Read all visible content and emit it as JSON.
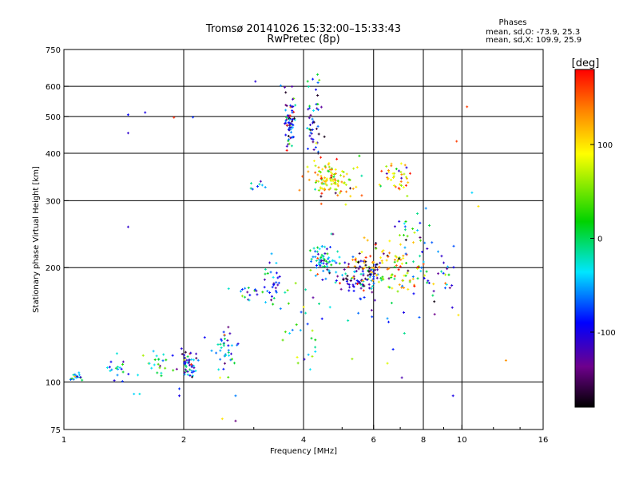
{
  "chart_data": {
    "type": "scatter",
    "title": "Tromsø 20141026 15:32:00–15:33:43",
    "subtitle": "RwPretec (8p)",
    "xlabel": "Frequency [MHz]",
    "ylabel": "Stationary phase Virtual Height [km]",
    "x_scale": "log",
    "y_scale": "log",
    "xlim": [
      1,
      16
    ],
    "ylim": [
      75,
      750
    ],
    "x_ticks": [
      1,
      2,
      4,
      6,
      8,
      10,
      16
    ],
    "x_tick_labels": [
      "1",
      "2",
      "4",
      "6",
      "8",
      "10",
      "16"
    ],
    "x_grid": [
      2,
      4,
      6,
      8,
      10
    ],
    "y_ticks": [
      75,
      100,
      200,
      300,
      400,
      500,
      600,
      750
    ],
    "y_tick_labels": [
      "75",
      "100",
      "200",
      "300",
      "400",
      "500",
      "600",
      "750"
    ],
    "y_grid": [
      100,
      200,
      300,
      400,
      500,
      600
    ],
    "grid": true,
    "stats": {
      "heading": "Phases",
      "o_line": "mean, sd,O: -73.9, 25.3",
      "x_line": "mean, sd,X: 109.9, 25.9"
    },
    "colorbar": {
      "label": "[deg]",
      "range": [
        -180,
        180
      ],
      "ticks": [
        -100,
        0,
        100
      ],
      "tick_labels": [
        "-100",
        "0",
        "100"
      ]
    },
    "seed": 20141026,
    "clusters": [
      {
        "fc": 1.08,
        "hc": 103,
        "sf": 0.03,
        "sh": 0.012,
        "n": 18,
        "phase": -20
      },
      {
        "fc": 1.38,
        "hc": 110,
        "sf": 0.05,
        "sh": 0.04,
        "n": 18,
        "phase": -30
      },
      {
        "fc": 1.72,
        "hc": 113,
        "sf": 0.05,
        "sh": 0.05,
        "n": 22,
        "phase": -40
      },
      {
        "fc": 2.05,
        "hc": 112,
        "sf": 0.03,
        "sh": 0.05,
        "n": 50,
        "phase": -60
      },
      {
        "fc": 2.55,
        "hc": 122,
        "sf": 0.05,
        "sh": 0.07,
        "n": 40,
        "phase": -55
      },
      {
        "fc": 2.95,
        "hc": 175,
        "sf": 0.05,
        "sh": 0.03,
        "n": 15,
        "phase": -60
      },
      {
        "fc": 3.35,
        "hc": 180,
        "sf": 0.03,
        "sh": 0.08,
        "n": 32,
        "phase": -70
      },
      {
        "fc": 3.1,
        "hc": 330,
        "sf": 0.02,
        "sh": 0.015,
        "n": 8,
        "phase": -40
      },
      {
        "fc": 3.7,
        "hc": 480,
        "sf": 0.015,
        "sh": 0.1,
        "n": 70,
        "phase": -90
      },
      {
        "fc": 4.25,
        "hc": 500,
        "sf": 0.03,
        "sh": 0.12,
        "n": 45,
        "phase": -85
      },
      {
        "fc": 4.6,
        "hc": 340,
        "sf": 0.08,
        "sh": 0.05,
        "n": 110,
        "phase": 110
      },
      {
        "fc": 6.8,
        "hc": 350,
        "sf": 0.06,
        "sh": 0.05,
        "n": 40,
        "phase": 115
      },
      {
        "fc": 4.5,
        "hc": 210,
        "sf": 0.04,
        "sh": 0.06,
        "n": 70,
        "phase": -50
      },
      {
        "fc": 5.5,
        "hc": 185,
        "sf": 0.07,
        "sh": 0.05,
        "n": 80,
        "phase": -100
      },
      {
        "fc": 5.8,
        "hc": 205,
        "sf": 0.06,
        "sh": 0.06,
        "n": 60,
        "phase": 140
      },
      {
        "fc": 7.0,
        "hc": 200,
        "sf": 0.07,
        "sh": 0.08,
        "n": 70,
        "phase": 100
      },
      {
        "fc": 8.5,
        "hc": 195,
        "sf": 0.07,
        "sh": 0.08,
        "n": 35,
        "phase": -90
      },
      {
        "fc": 7.5,
        "hc": 250,
        "sf": 0.05,
        "sh": 0.05,
        "n": 20,
        "phase": -40
      },
      {
        "fc": 3.9,
        "hc": 140,
        "sf": 0.08,
        "sh": 0.18,
        "n": 30,
        "phase": 0
      },
      {
        "fc": 6.5,
        "hc": 160,
        "sf": 0.15,
        "sh": 0.15,
        "n": 20,
        "phase": -80
      },
      {
        "fc": 2.0,
        "hc": 600,
        "sf": 0.3,
        "sh": 0.2,
        "n": 4,
        "phase": -100
      }
    ],
    "phase_noise": 55,
    "extra_points": [
      {
        "f": 1.45,
        "h": 505,
        "p": -90
      },
      {
        "f": 1.6,
        "h": 512,
        "p": -100
      },
      {
        "f": 1.45,
        "h": 452,
        "p": -110
      },
      {
        "f": 1.45,
        "h": 256,
        "p": -110
      },
      {
        "f": 1.5,
        "h": 93,
        "p": -40
      },
      {
        "f": 1.55,
        "h": 93,
        "p": -30
      },
      {
        "f": 2.5,
        "h": 80,
        "p": 100
      },
      {
        "f": 2.7,
        "h": 79,
        "p": -140
      },
      {
        "f": 2.7,
        "h": 92,
        "p": -60
      },
      {
        "f": 1.95,
        "h": 96,
        "p": -80
      },
      {
        "f": 1.95,
        "h": 92,
        "p": -100
      },
      {
        "f": 9.5,
        "h": 92,
        "p": -100
      },
      {
        "f": 10.3,
        "h": 530,
        "p": 160
      },
      {
        "f": 9.7,
        "h": 430,
        "p": 160
      },
      {
        "f": 10.6,
        "h": 315,
        "p": -40
      },
      {
        "f": 12.9,
        "h": 114,
        "p": 130
      },
      {
        "f": 11.0,
        "h": 290,
        "p": 100
      },
      {
        "f": 9.8,
        "h": 150,
        "p": 100
      },
      {
        "f": 5.3,
        "h": 115,
        "p": 60
      },
      {
        "f": 6.5,
        "h": 112,
        "p": 80
      }
    ]
  }
}
